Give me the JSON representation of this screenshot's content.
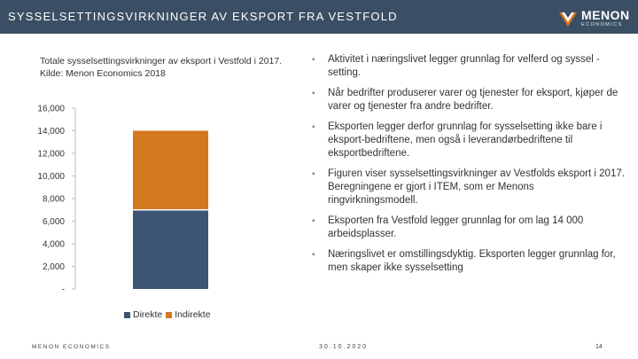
{
  "header": {
    "title": "SYSSELSETTINGSVIRKNINGER AV EKSPORT FRA VESTFOLD",
    "logo_main": "MENON",
    "logo_sub": "ECONOMICS"
  },
  "colors": {
    "header_bg": "#3a4f63",
    "direkte": "#3d5573",
    "indirekte": "#d4781e"
  },
  "chart_caption": {
    "line1": "Totale sysselsettingsvirkninger av eksport i Vestfold i 2017.",
    "line2": "Kilde: Menon Economics 2018"
  },
  "chart_data": {
    "type": "bar",
    "stacked": true,
    "categories": [
      ""
    ],
    "series": [
      {
        "name": "Direkte",
        "values": [
          7000
        ],
        "color": "#3d5573"
      },
      {
        "name": "Indirekte",
        "values": [
          7000
        ],
        "color": "#d4781e"
      }
    ],
    "ylim": [
      0,
      16000
    ],
    "yticks": [
      "-",
      "2,000",
      "4,000",
      "6,000",
      "8,000",
      "10,000",
      "12,000",
      "14,000",
      "16,000"
    ],
    "legend_position": "bottom",
    "grid": false
  },
  "bullets": [
    "Aktivitet i næringslivet legger grunnlag for velferd og syssel -setting.",
    "Når bedrifter produserer varer og tjenester for eksport, kjøper de varer og tjenester fra andre bedrifter.",
    "Eksporten legger derfor grunnlag for sysselsetting ikke bare i eksport-bedriftene, men også i leverandørbedriftene til eksportbedriftene.",
    "Figuren viser sysselsettingsvirkninger av Vestfolds eksport i 2017. Beregningene er gjort i ITEM, som er Menons ringvirkningsmodell.",
    "Eksporten fra Vestfold legger grunnlag for om lag 14 000 arbeidsplasser.",
    "Næringslivet er omstillingsdyktig. Eksporten legger grunnlag for, men skaper ikke sysselsetting"
  ],
  "footer": {
    "left": "MENON ECONOMICS",
    "date": "30.10.2020",
    "page": "14"
  }
}
